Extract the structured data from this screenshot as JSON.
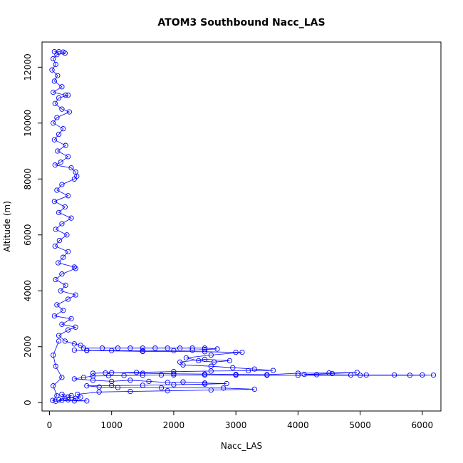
{
  "chart_data": {
    "type": "scatter",
    "title": "ATOM3 Southbound Nacc_LAS",
    "xlabel": "Nacc_LAS",
    "ylabel": "Altitude (m)",
    "xlim": [
      -120,
      6300
    ],
    "ylim": [
      -300,
      12900
    ],
    "xticks": [
      0,
      1000,
      2000,
      3000,
      4000,
      5000,
      6000
    ],
    "xtick_labels": [
      "0",
      "1000",
      "2000",
      "3000",
      "4000",
      "5000",
      "6000"
    ],
    "yticks": [
      0,
      2000,
      4000,
      6000,
      8000,
      10000,
      12000
    ],
    "ytick_labels": [
      "0",
      "2000",
      "4000",
      "6000",
      "8000",
      "10000",
      "12000"
    ],
    "grid": false,
    "marker": "open-circle",
    "connected": true,
    "color": "#0000ff",
    "series": [
      {
        "points": [
          [
            80,
            12550
          ],
          [
            150,
            12550
          ],
          [
            220,
            12540
          ],
          [
            250,
            12500
          ],
          [
            120,
            12450
          ],
          [
            60,
            12300
          ],
          [
            100,
            12100
          ],
          [
            40,
            11900
          ],
          [
            130,
            11700
          ],
          [
            80,
            11500
          ],
          [
            200,
            11300
          ],
          [
            60,
            11100
          ],
          [
            260,
            11000
          ],
          [
            300,
            11000
          ],
          [
            150,
            10900
          ],
          [
            90,
            10700
          ],
          [
            200,
            10500
          ],
          [
            320,
            10400
          ],
          [
            120,
            10200
          ],
          [
            60,
            10000
          ],
          [
            220,
            9800
          ],
          [
            150,
            9600
          ],
          [
            80,
            9400
          ],
          [
            260,
            9200
          ],
          [
            130,
            9000
          ],
          [
            300,
            8800
          ],
          [
            180,
            8600
          ],
          [
            90,
            8500
          ],
          [
            350,
            8400
          ],
          [
            420,
            8250
          ],
          [
            440,
            8100
          ],
          [
            400,
            8000
          ],
          [
            200,
            7800
          ],
          [
            120,
            7600
          ],
          [
            300,
            7400
          ],
          [
            80,
            7200
          ],
          [
            250,
            7000
          ],
          [
            150,
            6800
          ],
          [
            350,
            6600
          ],
          [
            200,
            6400
          ],
          [
            100,
            6200
          ],
          [
            280,
            6000
          ],
          [
            160,
            5800
          ],
          [
            90,
            5600
          ],
          [
            300,
            5400
          ],
          [
            220,
            5200
          ],
          [
            140,
            5000
          ],
          [
            400,
            4850
          ],
          [
            420,
            4800
          ],
          [
            200,
            4600
          ],
          [
            100,
            4400
          ],
          [
            260,
            4200
          ],
          [
            180,
            4000
          ],
          [
            420,
            3850
          ],
          [
            300,
            3700
          ],
          [
            120,
            3500
          ],
          [
            220,
            3300
          ],
          [
            80,
            3100
          ],
          [
            350,
            3000
          ],
          [
            200,
            2800
          ],
          [
            420,
            2700
          ],
          [
            300,
            2600
          ],
          [
            150,
            2400
          ],
          [
            250,
            2200
          ],
          [
            400,
            2100
          ],
          [
            500,
            2050
          ],
          [
            550,
            1950
          ],
          [
            850,
            1950
          ],
          [
            1100,
            1950
          ],
          [
            1300,
            1950
          ],
          [
            1500,
            1950
          ],
          [
            1700,
            1950
          ],
          [
            1900,
            1950
          ],
          [
            2100,
            1950
          ],
          [
            2300,
            1950
          ],
          [
            2500,
            1950
          ],
          [
            2700,
            1920
          ],
          [
            2500,
            1900
          ],
          [
            2300,
            1880
          ],
          [
            2000,
            1860
          ],
          [
            1500,
            1850
          ],
          [
            1000,
            1860
          ],
          [
            600,
            1870
          ],
          [
            400,
            1880
          ],
          [
            600,
            1860
          ],
          [
            1500,
            1830
          ],
          [
            2500,
            1820
          ],
          [
            3000,
            1800
          ],
          [
            3100,
            1800
          ],
          [
            2600,
            1700
          ],
          [
            2200,
            1600
          ],
          [
            2400,
            1500
          ],
          [
            2650,
            1450
          ],
          [
            2900,
            1500
          ],
          [
            2500,
            1550
          ],
          [
            2100,
            1450
          ],
          [
            2150,
            1350
          ],
          [
            2600,
            1300
          ],
          [
            2950,
            1250
          ],
          [
            3300,
            1200
          ],
          [
            3600,
            1150
          ],
          [
            3200,
            1140
          ],
          [
            2600,
            1130
          ],
          [
            2000,
            1110
          ],
          [
            1400,
            1080
          ],
          [
            900,
            1060
          ],
          [
            700,
            1050
          ],
          [
            1000,
            1070
          ],
          [
            1500,
            1050
          ],
          [
            2000,
            1030
          ],
          [
            2500,
            1020
          ],
          [
            3000,
            1010
          ],
          [
            3500,
            1000
          ],
          [
            4000,
            1050
          ],
          [
            4500,
            1060
          ],
          [
            4950,
            1080
          ],
          [
            4550,
            1040
          ],
          [
            4100,
            1010
          ],
          [
            4300,
            1000
          ],
          [
            4850,
            990
          ],
          [
            5100,
            990
          ],
          [
            5550,
            990
          ],
          [
            6000,
            990
          ],
          [
            6180,
            985
          ],
          [
            5800,
            980
          ],
          [
            5000,
            980
          ],
          [
            4000,
            980
          ],
          [
            3500,
            980
          ],
          [
            3000,
            980
          ],
          [
            2500,
            985
          ],
          [
            2000,
            990
          ],
          [
            1800,
            990
          ],
          [
            1500,
            980
          ],
          [
            1200,
            970
          ],
          [
            950,
            960
          ],
          [
            700,
            950
          ],
          [
            550,
            900
          ],
          [
            400,
            850
          ],
          [
            700,
            800
          ],
          [
            1000,
            760
          ],
          [
            1300,
            800
          ],
          [
            1600,
            760
          ],
          [
            1900,
            720
          ],
          [
            2150,
            740
          ],
          [
            2500,
            700
          ],
          [
            2850,
            680
          ],
          [
            2500,
            660
          ],
          [
            2000,
            640
          ],
          [
            1500,
            620
          ],
          [
            1000,
            610
          ],
          [
            600,
            600
          ],
          [
            800,
            560
          ],
          [
            1100,
            540
          ],
          [
            1800,
            530
          ],
          [
            2800,
            520
          ],
          [
            3300,
            480
          ],
          [
            2600,
            450
          ],
          [
            1900,
            420
          ],
          [
            1300,
            400
          ],
          [
            800,
            380
          ],
          [
            450,
            300
          ],
          [
            500,
            200
          ],
          [
            420,
            150
          ],
          [
            300,
            200
          ],
          [
            350,
            250
          ],
          [
            200,
            300
          ],
          [
            250,
            150
          ],
          [
            150,
            100
          ],
          [
            200,
            80
          ],
          [
            400,
            60
          ],
          [
            600,
            60
          ],
          [
            300,
            100
          ],
          [
            100,
            50
          ],
          [
            50,
            80
          ],
          [
            120,
            250
          ],
          [
            60,
            600
          ],
          [
            200,
            900
          ],
          [
            100,
            1300
          ],
          [
            60,
            1700
          ],
          [
            150,
            2200
          ]
        ]
      }
    ]
  }
}
